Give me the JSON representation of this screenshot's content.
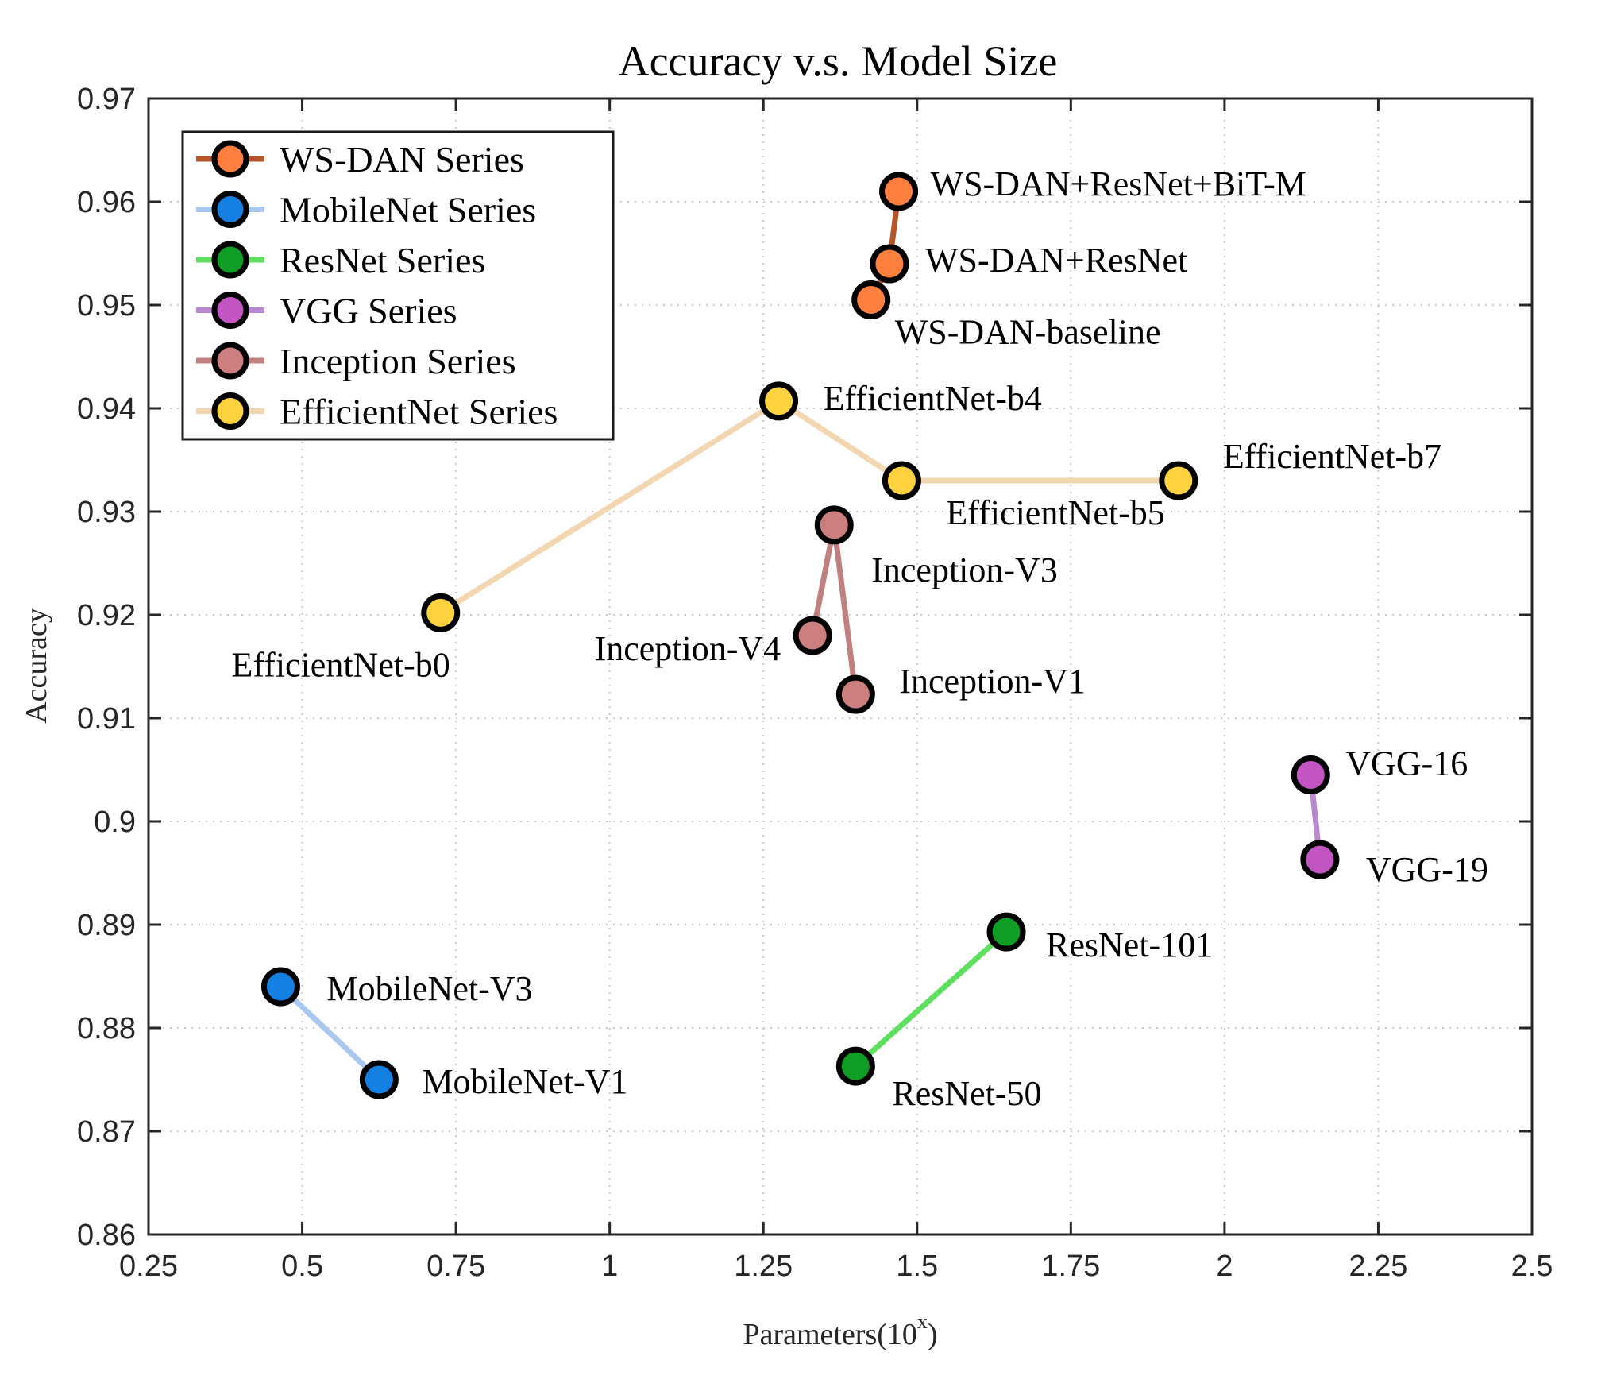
{
  "chart_data": {
    "type": "line",
    "title": "Accuracy v.s. Model Size",
    "xlabel": "Parameters(10",
    "xlabel_sup": "x",
    "xlabel_close": ")",
    "ylabel": "Accuracy",
    "xlim": [
      0.25,
      2.5
    ],
    "ylim": [
      0.86,
      0.97
    ],
    "xticks": [
      0.25,
      0.5,
      0.75,
      1,
      1.25,
      1.5,
      1.75,
      2,
      2.25,
      2.5
    ],
    "xtick_labels": [
      "0.25",
      "0.5",
      "0.75",
      "1",
      "1.25",
      "1.5",
      "1.75",
      "2",
      "2.25",
      "2.5"
    ],
    "yticks": [
      0.86,
      0.87,
      0.88,
      0.89,
      0.9,
      0.91,
      0.92,
      0.93,
      0.94,
      0.95,
      0.96,
      0.97
    ],
    "ytick_labels": [
      "0.86",
      "0.87",
      "0.88",
      "0.89",
      "0.9",
      "0.91",
      "0.92",
      "0.93",
      "0.94",
      "0.95",
      "0.96",
      "0.97"
    ],
    "grid": true,
    "legend_position": "top-left",
    "series": [
      {
        "name": "WS-DAN Series",
        "line_color": "#b5562a",
        "marker_color": "#ff7f3f",
        "points": [
          {
            "x": 1.425,
            "y": 0.9505,
            "label": "WS-DAN-baseline"
          },
          {
            "x": 1.455,
            "y": 0.954,
            "label": "WS-DAN+ResNet"
          },
          {
            "x": 1.47,
            "y": 0.961,
            "label": "WS-DAN+ResNet+BiT-M"
          }
        ]
      },
      {
        "name": "MobileNet Series",
        "line_color": "#a9c8f0",
        "marker_color": "#1380e2",
        "points": [
          {
            "x": 0.465,
            "y": 0.884,
            "label": "MobileNet-V3"
          },
          {
            "x": 0.625,
            "y": 0.875,
            "label": "MobileNet-V1"
          }
        ]
      },
      {
        "name": "ResNet Series",
        "line_color": "#5ee05e",
        "marker_color": "#0f9d25",
        "points": [
          {
            "x": 1.4,
            "y": 0.8763,
            "label": "ResNet-50"
          },
          {
            "x": 1.645,
            "y": 0.8893,
            "label": "ResNet-101"
          }
        ]
      },
      {
        "name": "VGG Series",
        "line_color": "#b888d0",
        "marker_color": "#c355c3",
        "points": [
          {
            "x": 2.14,
            "y": 0.9045,
            "label": "VGG-16"
          },
          {
            "x": 2.155,
            "y": 0.8963,
            "label": "VGG-19"
          }
        ]
      },
      {
        "name": "Inception Series",
        "line_color": "#c08080",
        "marker_color": "#cd7f7f",
        "points": [
          {
            "x": 1.33,
            "y": 0.918,
            "label": "Inception-V4"
          },
          {
            "x": 1.365,
            "y": 0.9287,
            "label": "Inception-V3"
          },
          {
            "x": 1.4,
            "y": 0.9123,
            "label": "Inception-V1"
          }
        ]
      },
      {
        "name": "EfficientNet Series",
        "line_color": "#f2d6b2",
        "marker_color": "#ffd23f",
        "points": [
          {
            "x": 0.725,
            "y": 0.9202,
            "label": "EfficientNet-b0"
          },
          {
            "x": 1.275,
            "y": 0.9407,
            "label": "EfficientNet-b4"
          },
          {
            "x": 1.475,
            "y": 0.933,
            "label": "EfficientNet-b5"
          },
          {
            "x": 1.925,
            "y": 0.933,
            "label": "EfficientNet-b7"
          }
        ]
      }
    ]
  }
}
